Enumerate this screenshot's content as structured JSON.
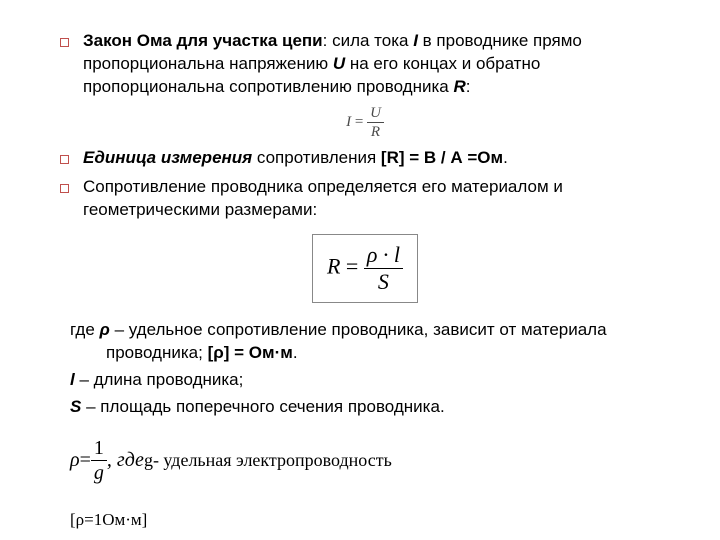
{
  "bullets": [
    {
      "prefix_bold": "Закон Ома для участка цепи",
      "text_before_I": ": сила тока ",
      "I": "I",
      "mid1": " в проводнике прямо пропорциональна напряжению ",
      "U": "U",
      "mid2": " на его концах и обратно пропорциональна сопротивлению проводника ",
      "R": "R",
      "after": ":"
    },
    {
      "lead_bi": "Единица измерения",
      "text": " сопротивления ",
      "bold_tail": "[R] = В / А =Ом",
      "after": "."
    },
    {
      "plain": "Сопротивление проводника определяется его материалом и геометрическими размерами:"
    }
  ],
  "formula_small": {
    "I": "I",
    "eq": " = ",
    "num": "U",
    "den": "R"
  },
  "formula_box": {
    "R": "R",
    "eq": " = ",
    "num": "ρ · l",
    "den": "S"
  },
  "where": {
    "line1_pre": "где ",
    "rho": "ρ",
    "line1_mid": " – удельное сопротивление проводника, зависит от материала проводника; ",
    "rho_unit_bold": "[ρ] = Ом·м",
    "dot": ".",
    "line2_sym": "l",
    "line2_text": " – длина проводника;",
    "line3_sym": "S",
    "line3_text": " – площадь поперечного сечения проводника."
  },
  "rho_formula": {
    "rho": "ρ",
    "eq": " = ",
    "num": "1",
    "den": "g",
    "comma_gde": ", где ",
    "g": "g",
    "tail": " - удельная электропроводность"
  },
  "rho_dim": "[ρ=1Ом·м]"
}
